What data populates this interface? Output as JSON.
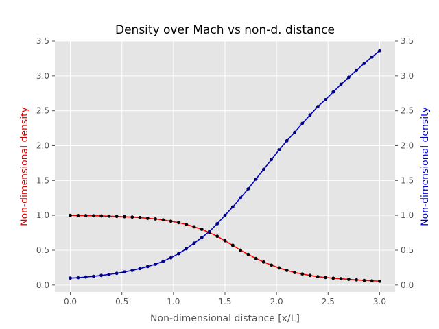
{
  "chart_data": {
    "type": "line",
    "title": "Density over Mach vs non-d. distance",
    "xlabel": "Non-dimensional distance [x/L]",
    "ylabel_left": "Non-dimensional density",
    "ylabel_right": "Non-dimensional density",
    "xlim": [
      -0.15,
      3.15
    ],
    "ylim": [
      -0.1,
      3.5
    ],
    "xticks": [
      "0.0",
      "0.5",
      "1.0",
      "1.5",
      "2.0",
      "2.5",
      "3.0"
    ],
    "yticks_left": [
      "0.0",
      "0.5",
      "1.0",
      "1.5",
      "2.0",
      "2.5",
      "3.0",
      "3.5"
    ],
    "yticks_right": [
      "0.0",
      "0.5",
      "1.0",
      "1.5",
      "2.0",
      "2.5",
      "3.0",
      "3.5"
    ],
    "grid": true,
    "background": "#e5e5e5",
    "x": [
      0.0,
      0.075,
      0.15,
      0.225,
      0.3,
      0.375,
      0.45,
      0.525,
      0.6,
      0.675,
      0.75,
      0.825,
      0.9,
      0.975,
      1.05,
      1.125,
      1.2,
      1.275,
      1.35,
      1.425,
      1.5,
      1.575,
      1.65,
      1.725,
      1.8,
      1.875,
      1.95,
      2.025,
      2.1,
      2.175,
      2.25,
      2.325,
      2.4,
      2.475,
      2.55,
      2.625,
      2.7,
      2.775,
      2.85,
      2.925,
      3.0
    ],
    "series": [
      {
        "color": "#ff0000",
        "marker_color": "#000000",
        "axis": "left",
        "values": [
          1.0,
          0.998,
          0.996,
          0.994,
          0.992,
          0.989,
          0.985,
          0.98,
          0.975,
          0.968,
          0.958,
          0.948,
          0.935,
          0.915,
          0.895,
          0.87,
          0.835,
          0.8,
          0.75,
          0.7,
          0.635,
          0.57,
          0.5,
          0.44,
          0.38,
          0.33,
          0.285,
          0.245,
          0.21,
          0.18,
          0.158,
          0.138,
          0.12,
          0.108,
          0.098,
          0.09,
          0.082,
          0.074,
          0.066,
          0.06,
          0.055
        ]
      },
      {
        "color": "#0000cc",
        "marker_color": "#000080",
        "axis": "right",
        "values": [
          0.1,
          0.105,
          0.115,
          0.125,
          0.138,
          0.152,
          0.168,
          0.188,
          0.21,
          0.236,
          0.265,
          0.298,
          0.34,
          0.39,
          0.45,
          0.52,
          0.6,
          0.68,
          0.77,
          0.88,
          1.0,
          1.12,
          1.25,
          1.38,
          1.52,
          1.66,
          1.8,
          1.94,
          2.07,
          2.19,
          2.32,
          2.44,
          2.56,
          2.66,
          2.77,
          2.88,
          2.98,
          3.08,
          3.18,
          3.27,
          3.36
        ]
      }
    ],
    "ylabel_left_color": "#e00000",
    "ylabel_right_color": "#0000dd"
  }
}
